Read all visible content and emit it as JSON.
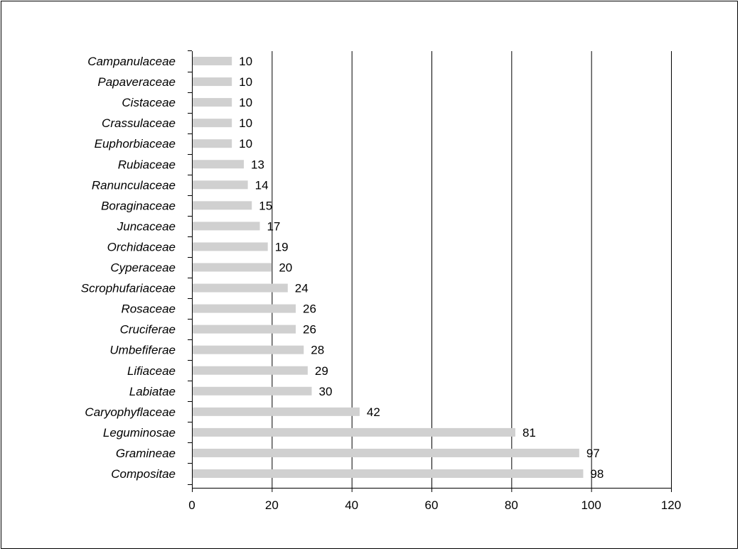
{
  "chart_data": {
    "type": "bar",
    "orientation": "horizontal",
    "title": "",
    "xlabel": "",
    "ylabel": "",
    "categories": [
      "Campanulaceae",
      "Papaveraceae",
      "Cistaceae",
      "Crassulaceae",
      "Euphorbiaceae",
      "Rubiaceae",
      "Ranunculaceae",
      "Boraginaceae",
      "Juncaceae",
      "Orchidaceae",
      "Cyperaceae",
      "Scrophufariaceae",
      "Rosaceae",
      "Cruciferae",
      "Umbefiferae",
      "Lifiaceae",
      "Labiatae",
      "Caryophyflaceae",
      "Leguminosae",
      "Gramineae",
      "Compositae"
    ],
    "values": [
      10,
      10,
      10,
      10,
      10,
      13,
      14,
      15,
      17,
      19,
      20,
      24,
      26,
      26,
      28,
      29,
      30,
      42,
      81,
      97,
      98
    ],
    "xlim": [
      0,
      120
    ],
    "xticks": [
      0,
      20,
      40,
      60,
      80,
      100,
      120
    ],
    "grid": "vertical",
    "bar_color": "#d0d0d0",
    "grid_color": "#000000",
    "data_labels": true
  }
}
